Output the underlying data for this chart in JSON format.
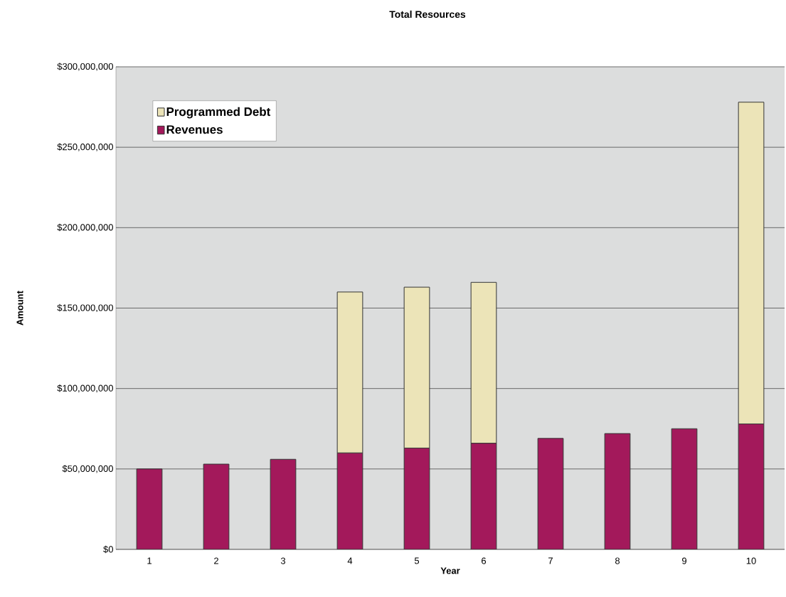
{
  "chart_data": {
    "type": "bar",
    "title": "Total Resources",
    "xlabel": "Year",
    "ylabel": "Amount",
    "categories": [
      "1",
      "2",
      "3",
      "4",
      "5",
      "6",
      "7",
      "8",
      "9",
      "10"
    ],
    "stacked": true,
    "series": [
      {
        "name": "Revenues",
        "color": "#a3195b",
        "values": [
          50000000,
          53000000,
          56000000,
          60000000,
          63000000,
          66000000,
          69000000,
          72000000,
          75000000,
          78000000
        ]
      },
      {
        "name": "Programmed Debt",
        "color": "#ece4b8",
        "values": [
          null,
          null,
          null,
          100000000,
          100000000,
          100000000,
          null,
          null,
          null,
          200000000
        ]
      }
    ],
    "ylim": [
      0,
      300000000
    ],
    "yticks": [
      {
        "value": 0,
        "label": "$0"
      },
      {
        "value": 50000000,
        "label": "$50,000,000"
      },
      {
        "value": 100000000,
        "label": "$100,000,000"
      },
      {
        "value": 150000000,
        "label": "$150,000,000"
      },
      {
        "value": 200000000,
        "label": "$200,000,000"
      },
      {
        "value": 250000000,
        "label": "$250,000,000"
      },
      {
        "value": 300000000,
        "label": "$300,000,000"
      }
    ],
    "grid": "y",
    "legend": "top left"
  }
}
